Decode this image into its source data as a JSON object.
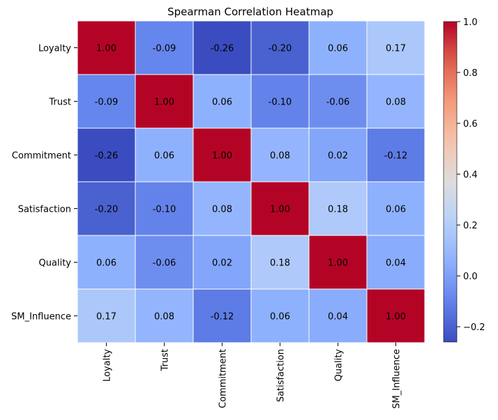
{
  "chart_data": {
    "type": "heatmap",
    "title": "Spearman Correlation Heatmap",
    "x_labels": [
      "Loyalty",
      "Trust",
      "Commitment",
      "Satisfaction",
      "Quality",
      "SM_Influence"
    ],
    "y_labels": [
      "Loyalty",
      "Trust",
      "Commitment",
      "Satisfaction",
      "Quality",
      "SM_Influence"
    ],
    "values": [
      [
        1.0,
        -0.09,
        -0.26,
        -0.2,
        0.06,
        0.17
      ],
      [
        -0.09,
        1.0,
        0.06,
        -0.1,
        -0.06,
        0.08
      ],
      [
        -0.26,
        0.06,
        1.0,
        0.08,
        0.02,
        -0.12
      ],
      [
        -0.2,
        -0.1,
        0.08,
        1.0,
        0.18,
        0.06
      ],
      [
        0.06,
        -0.06,
        0.02,
        0.18,
        1.0,
        0.04
      ],
      [
        0.17,
        0.08,
        -0.12,
        0.06,
        0.04,
        1.0
      ]
    ],
    "value_format": "0.00",
    "colormap": "coolwarm",
    "vmin": -0.26,
    "vmax": 1.0,
    "colorbar_ticks": [
      -0.2,
      0.0,
      0.2,
      0.4,
      0.6,
      0.8,
      1.0
    ],
    "colorbar_tick_labels": [
      "−0.2",
      "0.0",
      "0.2",
      "0.4",
      "0.6",
      "0.8",
      "1.0"
    ],
    "cell_border_color": "#ffffff",
    "legend_placement": "colorbar-right"
  }
}
